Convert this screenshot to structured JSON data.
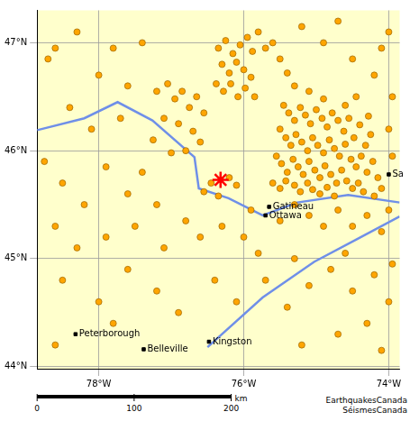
{
  "chart_data": {
    "type": "scatter",
    "xlim": [
      -78.85,
      -73.85
    ],
    "ylim": [
      43.98,
      47.3
    ],
    "xticks": [
      {
        "value": -78,
        "label": "78°W"
      },
      {
        "value": -76,
        "label": "76°W"
      },
      {
        "value": -74,
        "label": "74°W"
      }
    ],
    "yticks": [
      {
        "value": 44,
        "label": "44°N"
      },
      {
        "value": 45,
        "label": "45°N"
      },
      {
        "value": 46,
        "label": "46°N"
      },
      {
        "value": 47,
        "label": "47°N"
      }
    ],
    "grid": true,
    "earthquakes": {
      "color": "#ffa500",
      "marker": "circle",
      "points": [
        [
          -75.45,
          46.42
        ],
        [
          -75.38,
          46.35
        ],
        [
          -75.3,
          46.28
        ],
        [
          -75.22,
          46.4
        ],
        [
          -75.15,
          46.33
        ],
        [
          -75.08,
          46.25
        ],
        [
          -75.0,
          46.38
        ],
        [
          -74.92,
          46.3
        ],
        [
          -74.85,
          46.22
        ],
        [
          -74.78,
          46.35
        ],
        [
          -74.7,
          46.28
        ],
        [
          -74.62,
          46.18
        ],
        [
          -74.55,
          46.3
        ],
        [
          -74.48,
          46.12
        ],
        [
          -74.4,
          46.24
        ],
        [
          -74.32,
          46.05
        ],
        [
          -74.25,
          46.15
        ],
        [
          -75.5,
          46.2
        ],
        [
          -75.42,
          46.12
        ],
        [
          -75.35,
          46.05
        ],
        [
          -75.28,
          46.15
        ],
        [
          -75.2,
          46.08
        ],
        [
          -75.12,
          46.0
        ],
        [
          -75.05,
          46.12
        ],
        [
          -74.98,
          46.05
        ],
        [
          -74.9,
          45.98
        ],
        [
          -74.82,
          46.1
        ],
        [
          -74.75,
          46.02
        ],
        [
          -74.68,
          45.95
        ],
        [
          -74.6,
          46.06
        ],
        [
          -74.52,
          45.92
        ],
        [
          -74.45,
          45.85
        ],
        [
          -74.38,
          45.95
        ],
        [
          -74.3,
          45.8
        ],
        [
          -74.22,
          45.9
        ],
        [
          -74.15,
          45.75
        ],
        [
          -75.55,
          45.95
        ],
        [
          -75.48,
          45.88
        ],
        [
          -75.4,
          45.8
        ],
        [
          -75.32,
          45.92
        ],
        [
          -75.25,
          45.85
        ],
        [
          -75.18,
          45.78
        ],
        [
          -75.1,
          45.9
        ],
        [
          -75.02,
          45.82
        ],
        [
          -74.95,
          45.75
        ],
        [
          -74.88,
          45.86
        ],
        [
          -74.8,
          45.78
        ],
        [
          -74.72,
          45.7
        ],
        [
          -74.65,
          45.82
        ],
        [
          -74.58,
          45.72
        ],
        [
          -74.5,
          45.65
        ],
        [
          -74.42,
          45.7
        ],
        [
          -74.35,
          45.62
        ],
        [
          -75.6,
          45.7
        ],
        [
          -75.5,
          45.65
        ],
        [
          -75.42,
          45.72
        ],
        [
          -75.3,
          45.68
        ],
        [
          -75.22,
          45.62
        ],
        [
          -75.12,
          45.7
        ],
        [
          -75.05,
          45.64
        ],
        [
          -74.95,
          45.6
        ],
        [
          -74.85,
          45.66
        ],
        [
          -74.75,
          45.58
        ],
        [
          -74.2,
          45.58
        ],
        [
          -74.1,
          45.65
        ],
        [
          -74.28,
          46.32
        ],
        [
          -74.6,
          46.42
        ],
        [
          -74.9,
          46.48
        ],
        [
          -75.1,
          46.55
        ],
        [
          -75.3,
          46.6
        ],
        [
          -74.45,
          46.5
        ],
        [
          -76.35,
          46.95
        ],
        [
          -76.25,
          47.02
        ],
        [
          -76.15,
          46.9
        ],
        [
          -76.05,
          46.98
        ],
        [
          -75.95,
          47.05
        ],
        [
          -75.88,
          46.92
        ],
        [
          -76.3,
          46.8
        ],
        [
          -76.2,
          46.72
        ],
        [
          -76.1,
          46.82
        ],
        [
          -76.0,
          46.75
        ],
        [
          -75.9,
          46.68
        ],
        [
          -76.38,
          46.62
        ],
        [
          -76.28,
          46.55
        ],
        [
          -76.18,
          46.62
        ],
        [
          -76.08,
          46.5
        ],
        [
          -75.98,
          46.58
        ],
        [
          -75.85,
          46.5
        ],
        [
          -75.8,
          47.1
        ],
        [
          -75.7,
          46.95
        ],
        [
          -75.6,
          47.0
        ],
        [
          -75.5,
          46.85
        ],
        [
          -75.4,
          46.72
        ],
        [
          -77.2,
          46.55
        ],
        [
          -77.05,
          46.62
        ],
        [
          -76.95,
          46.48
        ],
        [
          -76.85,
          46.55
        ],
        [
          -76.75,
          46.4
        ],
        [
          -76.65,
          46.5
        ],
        [
          -76.55,
          46.35
        ],
        [
          -77.1,
          46.3
        ],
        [
          -76.9,
          46.25
        ],
        [
          -76.7,
          46.18
        ],
        [
          -76.6,
          46.08
        ],
        [
          -77.25,
          46.1
        ],
        [
          -77.0,
          45.98
        ],
        [
          -76.8,
          46.0
        ],
        [
          -76.45,
          45.7
        ],
        [
          -76.2,
          45.75
        ],
        [
          -76.1,
          45.68
        ],
        [
          -76.55,
          45.62
        ],
        [
          -76.35,
          45.58
        ],
        [
          -78.7,
          46.85
        ],
        [
          -78.6,
          46.95
        ],
        [
          -78.3,
          47.1
        ],
        [
          -78.0,
          46.7
        ],
        [
          -77.8,
          46.95
        ],
        [
          -77.6,
          46.6
        ],
        [
          -77.4,
          47.0
        ],
        [
          -78.4,
          46.4
        ],
        [
          -78.1,
          46.2
        ],
        [
          -77.7,
          46.3
        ],
        [
          -78.75,
          45.9
        ],
        [
          -78.5,
          45.7
        ],
        [
          -78.2,
          45.5
        ],
        [
          -77.9,
          45.85
        ],
        [
          -77.6,
          45.6
        ],
        [
          -77.4,
          45.8
        ],
        [
          -77.2,
          45.5
        ],
        [
          -78.6,
          45.3
        ],
        [
          -78.3,
          45.1
        ],
        [
          -77.9,
          45.2
        ],
        [
          -77.5,
          45.3
        ],
        [
          -77.1,
          45.1
        ],
        [
          -76.8,
          45.35
        ],
        [
          -76.6,
          45.2
        ],
        [
          -76.3,
          45.3
        ],
        [
          -76.0,
          45.2
        ],
        [
          -75.8,
          45.05
        ],
        [
          -75.9,
          45.45
        ],
        [
          -75.5,
          45.35
        ],
        [
          -75.3,
          45.5
        ],
        [
          -75.1,
          45.4
        ],
        [
          -74.9,
          45.3
        ],
        [
          -74.7,
          45.45
        ],
        [
          -74.5,
          45.3
        ],
        [
          -74.3,
          45.4
        ],
        [
          -74.1,
          45.25
        ],
        [
          -74.0,
          45.45
        ],
        [
          -78.5,
          44.8
        ],
        [
          -78.0,
          44.6
        ],
        [
          -77.6,
          44.9
        ],
        [
          -77.2,
          44.7
        ],
        [
          -76.9,
          44.5
        ],
        [
          -76.4,
          44.8
        ],
        [
          -76.1,
          44.6
        ],
        [
          -75.7,
          44.8
        ],
        [
          -75.4,
          44.55
        ],
        [
          -75.1,
          44.75
        ],
        [
          -74.8,
          44.9
        ],
        [
          -74.5,
          44.7
        ],
        [
          -74.2,
          44.85
        ],
        [
          -74.0,
          44.6
        ],
        [
          -74.3,
          44.4
        ],
        [
          -74.7,
          44.3
        ],
        [
          -75.2,
          44.2
        ],
        [
          -77.8,
          44.4
        ],
        [
          -78.6,
          44.2
        ],
        [
          -74.1,
          44.15
        ],
        [
          -73.95,
          44.95
        ],
        [
          -74.6,
          45.05
        ],
        [
          -75.3,
          45.0
        ],
        [
          -74.9,
          47.0
        ],
        [
          -74.5,
          46.85
        ],
        [
          -74.2,
          46.7
        ],
        [
          -74.0,
          47.1
        ],
        [
          -73.95,
          46.5
        ],
        [
          -74.1,
          46.95
        ],
        [
          -75.2,
          47.15
        ],
        [
          -74.7,
          47.2
        ],
        [
          -74.0,
          46.2
        ],
        [
          -73.95,
          45.95
        ]
      ]
    },
    "epicenter": {
      "color": "#ff0000",
      "marker": "star",
      "point": [
        -76.32,
        45.73
      ]
    },
    "rivers": {
      "color": "#6f8fe8",
      "lines": [
        [
          [
            -78.85,
            46.19
          ],
          [
            -78.2,
            46.3
          ],
          [
            -77.74,
            46.45
          ],
          [
            -77.26,
            46.28
          ],
          [
            -76.68,
            45.94
          ],
          [
            -76.62,
            45.65
          ],
          [
            -76.21,
            45.56
          ],
          [
            -75.74,
            45.4
          ],
          [
            -75.26,
            45.52
          ],
          [
            -74.56,
            45.59
          ],
          [
            -73.85,
            45.52
          ]
        ],
        [
          [
            -76.5,
            44.18
          ],
          [
            -75.74,
            44.64
          ],
          [
            -75.03,
            44.97
          ],
          [
            -74.44,
            45.18
          ],
          [
            -73.85,
            45.39
          ]
        ]
      ]
    },
    "cities": {
      "color": "#000000",
      "marker": "square",
      "places": [
        {
          "label": "Peterborough",
          "x": -78.32,
          "y": 44.3
        },
        {
          "label": "Belleville",
          "x": -77.38,
          "y": 44.16
        },
        {
          "label": "Kingston",
          "x": -76.48,
          "y": 44.23
        },
        {
          "label": "Gatineau",
          "x": -75.65,
          "y": 45.48
        },
        {
          "label": "Ottawa",
          "x": -75.7,
          "y": 45.4
        },
        {
          "label": "Sa",
          "x": -74.0,
          "y": 45.78
        }
      ]
    },
    "scale_bar": {
      "values": [
        0,
        100,
        200
      ],
      "unit": "km"
    },
    "credit": [
      "EarthquakesCanada",
      "SéismesCanada"
    ]
  }
}
